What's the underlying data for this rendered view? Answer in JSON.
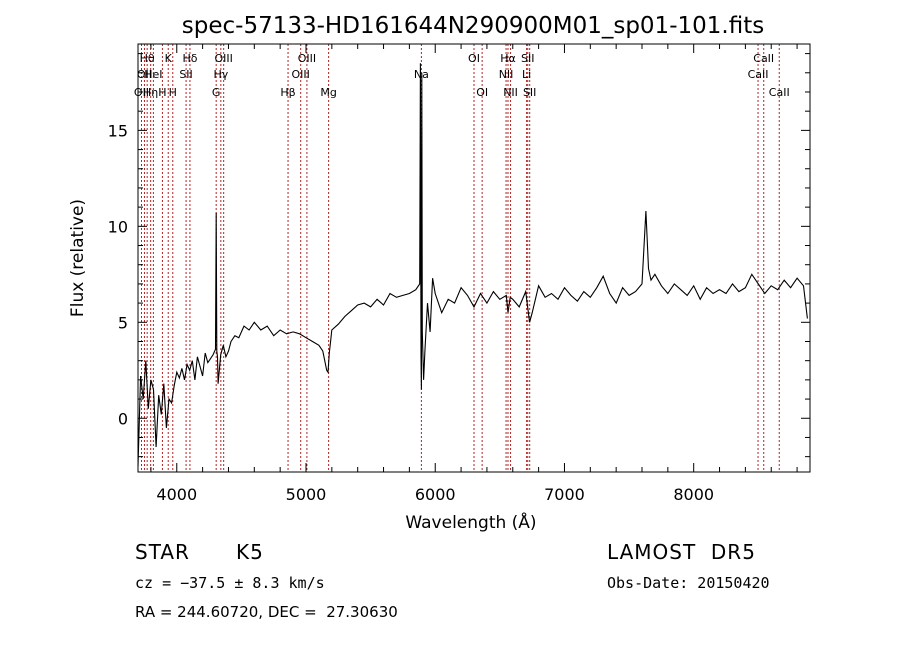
{
  "title": "spec-57133-HD161644N290900M01_sp01-101.fits",
  "info": {
    "class": "STAR",
    "subclass": "K5",
    "survey": "LAMOST  DR5",
    "cz": "cz = −37.5 ± 8.3 km/s",
    "obs_date": "Obs-Date: 20150420",
    "radec": "RA = 244.60720, DEC =  27.30630"
  },
  "colors": {
    "line_marker": "#b22222",
    "spectrum": "#000000",
    "frame": "#000000"
  },
  "chart_data": {
    "type": "line",
    "title": "spec-57133-HD161644N290900M01_sp01-101.fits",
    "xlabel": "Wavelength (Å)",
    "ylabel": "Flux (relative)",
    "xlim": [
      3700,
      8900
    ],
    "ylim": [
      -2.8,
      19.5
    ],
    "xticks": [
      "4000",
      "5000",
      "6000",
      "7000",
      "8000"
    ],
    "yticks": [
      "0",
      "5",
      "10",
      "15"
    ],
    "grid": false,
    "legend": "none",
    "series": [
      {
        "x": [
          3700,
          3720,
          3740,
          3760,
          3780,
          3800,
          3820,
          3840,
          3860,
          3880,
          3900,
          3920,
          3940,
          3960,
          3980,
          4000,
          4020,
          4040,
          4060,
          4080,
          4100,
          4120,
          4140,
          4160,
          4180,
          4200,
          4220,
          4240,
          4260,
          4280,
          4300,
          4305,
          4310,
          4315,
          4320,
          4340,
          4360,
          4380,
          4400,
          4420,
          4450,
          4480,
          4520,
          4560,
          4600,
          4650,
          4700,
          4750,
          4800,
          4850,
          4900,
          4950,
          5000,
          5050,
          5100,
          5130,
          5160,
          5170,
          5180,
          5190,
          5200,
          5250,
          5300,
          5350,
          5400,
          5450,
          5500,
          5550,
          5600,
          5650,
          5700,
          5750,
          5800,
          5850,
          5880,
          5885,
          5890,
          5893,
          5896,
          5900,
          5910,
          5920,
          5940,
          5960,
          5980,
          6000,
          6050,
          6100,
          6150,
          6200,
          6250,
          6300,
          6350,
          6400,
          6450,
          6500,
          6550,
          6563,
          6580,
          6600,
          6650,
          6700,
          6730,
          6750,
          6800,
          6850,
          6900,
          6950,
          7000,
          7050,
          7100,
          7150,
          7200,
          7250,
          7300,
          7350,
          7400,
          7450,
          7500,
          7550,
          7600,
          7630,
          7650,
          7670,
          7700,
          7750,
          7800,
          7850,
          7900,
          7950,
          8000,
          8050,
          8100,
          8150,
          8200,
          8250,
          8300,
          8350,
          8400,
          8450,
          8500,
          8550,
          8600,
          8650,
          8700,
          8750,
          8800,
          8850,
          8880
        ],
        "y": [
          -2.5,
          2.2,
          1.0,
          3.0,
          0.5,
          2.0,
          1.5,
          -1.5,
          1.2,
          0.2,
          1.8,
          -0.5,
          1.0,
          0.8,
          1.7,
          2.4,
          2.1,
          2.6,
          2.0,
          2.8,
          2.5,
          3.0,
          2.0,
          3.2,
          2.7,
          2.2,
          3.4,
          2.9,
          3.1,
          3.3,
          3.6,
          10.7,
          3.5,
          3.2,
          1.8,
          3.3,
          3.8,
          3.2,
          3.5,
          4.0,
          4.3,
          4.2,
          4.8,
          4.6,
          5.0,
          4.6,
          4.8,
          4.3,
          4.6,
          4.4,
          4.5,
          4.4,
          4.2,
          4.0,
          3.8,
          3.5,
          2.5,
          2.4,
          3.4,
          4.0,
          4.6,
          4.9,
          5.3,
          5.6,
          5.9,
          6.0,
          5.8,
          6.2,
          5.9,
          6.5,
          6.3,
          6.4,
          6.5,
          6.7,
          7.0,
          18.5,
          3.2,
          1.5,
          18.0,
          4.5,
          2.0,
          3.5,
          6.0,
          4.5,
          7.3,
          6.5,
          5.5,
          6.2,
          6.0,
          6.8,
          6.4,
          5.8,
          6.5,
          6.0,
          6.6,
          6.2,
          6.4,
          5.5,
          6.3,
          6.2,
          5.8,
          6.6,
          5.0,
          5.5,
          6.9,
          6.3,
          6.5,
          6.2,
          6.8,
          6.4,
          6.1,
          6.6,
          6.3,
          6.8,
          7.4,
          6.5,
          6.0,
          6.8,
          6.4,
          6.6,
          7.0,
          10.8,
          7.8,
          7.2,
          7.5,
          6.9,
          6.5,
          7.0,
          6.7,
          6.4,
          6.9,
          6.2,
          6.8,
          6.5,
          6.7,
          6.5,
          7.0,
          6.6,
          6.8,
          7.5,
          7.0,
          6.5,
          6.9,
          6.7,
          7.2,
          6.8,
          7.3,
          6.9,
          5.2
        ]
      }
    ],
    "annotations": [
      {
        "w": 3727,
        "row": 2,
        "label": "OII"
      },
      {
        "w": 3750,
        "row": 1,
        "label": "OII"
      },
      {
        "w": 3771,
        "row": 0,
        "label": "Hθ"
      },
      {
        "w": 3798,
        "row": 2,
        "label": "Hη"
      },
      {
        "w": 3819,
        "row": 1,
        "label": "HeI"
      },
      {
        "w": 3889,
        "row": 2,
        "label": "H"
      },
      {
        "w": 3934,
        "row": 0,
        "label": "K"
      },
      {
        "w": 3969,
        "row": 2,
        "label": "H"
      },
      {
        "w": 4072,
        "row": 1,
        "label": "SII"
      },
      {
        "w": 4102,
        "row": 0,
        "label": "Hδ"
      },
      {
        "w": 4305,
        "row": 2,
        "label": "G"
      },
      {
        "w": 4341,
        "row": 1,
        "label": "Hγ"
      },
      {
        "w": 4363,
        "row": 0,
        "label": "OIII"
      },
      {
        "w": 4861,
        "row": 2,
        "label": "Hβ"
      },
      {
        "w": 4959,
        "row": 1,
        "label": "OIII"
      },
      {
        "w": 5007,
        "row": 0,
        "label": "OIII"
      },
      {
        "w": 5175,
        "row": 2,
        "label": "Mg"
      },
      {
        "w": 5893,
        "row": 1,
        "label": "Na"
      },
      {
        "w": 6300,
        "row": 0,
        "label": "OI"
      },
      {
        "w": 6363,
        "row": 2,
        "label": "OI"
      },
      {
        "w": 6548,
        "row": 1,
        "label": "NII"
      },
      {
        "w": 6563,
        "row": 0,
        "label": "Hα"
      },
      {
        "w": 6583,
        "row": 2,
        "label": "NII"
      },
      {
        "w": 6707,
        "row": 1,
        "label": "Li"
      },
      {
        "w": 6716,
        "row": 0,
        "label": "SII"
      },
      {
        "w": 6731,
        "row": 2,
        "label": "SII"
      },
      {
        "w": 8498,
        "row": 1,
        "label": "CaII"
      },
      {
        "w": 8542,
        "row": 0,
        "label": "CaII"
      },
      {
        "w": 8662,
        "row": 2,
        "label": "CaII"
      }
    ]
  }
}
